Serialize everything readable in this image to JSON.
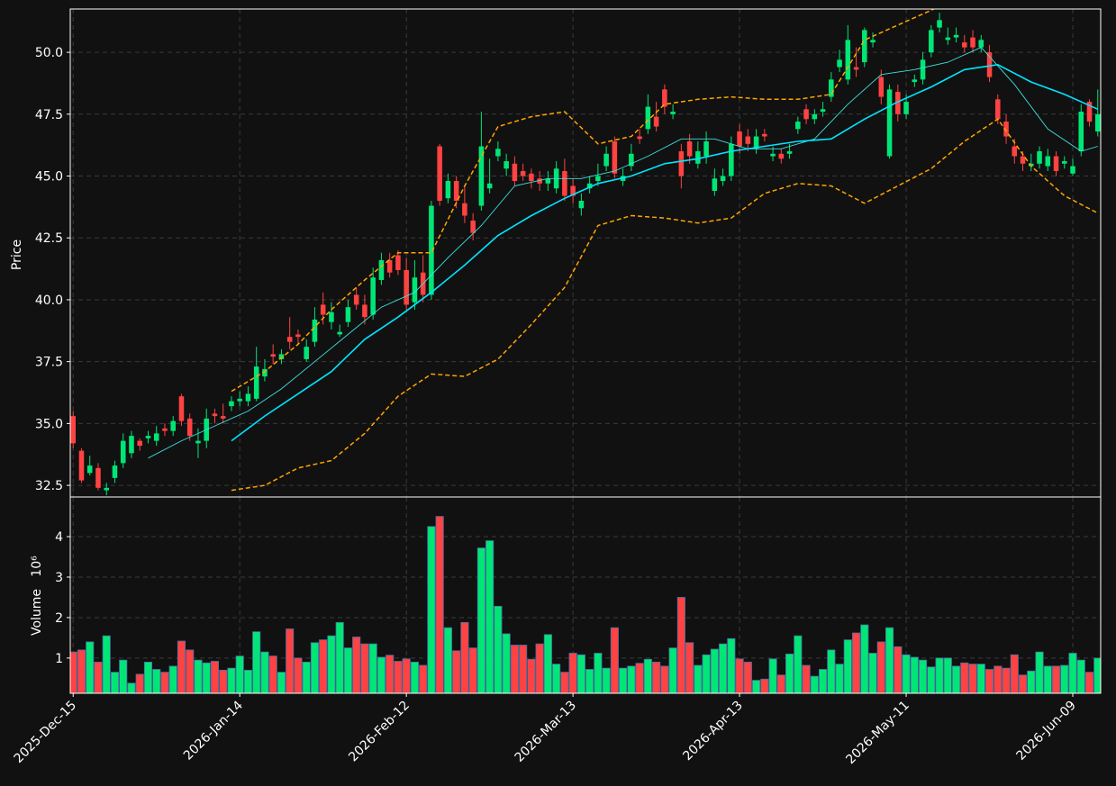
{
  "chart_data": {
    "type": "candlestick",
    "y_label": "Price",
    "x": [
      "2025-Dec-15",
      "2025-Dec-16",
      "2025-Dec-17",
      "2025-Dec-18",
      "2025-Dec-19",
      "2025-Dec-22",
      "2025-Dec-23",
      "2025-Dec-24",
      "2025-Dec-26",
      "2025-Dec-29",
      "2025-Dec-30",
      "2025-Dec-31",
      "2026-Jan-02",
      "2026-Jan-05",
      "2026-Jan-06",
      "2026-Jan-07",
      "2026-Jan-08",
      "2026-Jan-09",
      "2026-Jan-12",
      "2026-Jan-13",
      "2026-Jan-14",
      "2026-Jan-15",
      "2026-Jan-16",
      "2026-Jan-20",
      "2026-Jan-21",
      "2026-Jan-22",
      "2026-Jan-23",
      "2026-Jan-26",
      "2026-Jan-27",
      "2026-Jan-28",
      "2026-Jan-29",
      "2026-Jan-30",
      "2026-Feb-02",
      "2026-Feb-03",
      "2026-Feb-04",
      "2026-Feb-05",
      "2026-Feb-06",
      "2026-Feb-09",
      "2026-Feb-10",
      "2026-Feb-11",
      "2026-Feb-12",
      "2026-Feb-13",
      "2026-Feb-17",
      "2026-Feb-18",
      "2026-Feb-19",
      "2026-Feb-20",
      "2026-Feb-23",
      "2026-Feb-24",
      "2026-Feb-25",
      "2026-Feb-26",
      "2026-Feb-27",
      "2026-Mar-02",
      "2026-Mar-03",
      "2026-Mar-04",
      "2026-Mar-05",
      "2026-Mar-06",
      "2026-Mar-09",
      "2026-Mar-10",
      "2026-Mar-11",
      "2026-Mar-12",
      "2026-Mar-13",
      "2026-Mar-16",
      "2026-Mar-17",
      "2026-Mar-18",
      "2026-Mar-19",
      "2026-Mar-20",
      "2026-Mar-23",
      "2026-Mar-24",
      "2026-Mar-25",
      "2026-Mar-26",
      "2026-Mar-27",
      "2026-Mar-30",
      "2026-Mar-31",
      "2026-Apr-01",
      "2026-Apr-02",
      "2026-Apr-06",
      "2026-Apr-07",
      "2026-Apr-08",
      "2026-Apr-09",
      "2026-Apr-10",
      "2026-Apr-13",
      "2026-Apr-14",
      "2026-Apr-15",
      "2026-Apr-16",
      "2026-Apr-17",
      "2026-Apr-20",
      "2026-Apr-21",
      "2026-Apr-22",
      "2026-Apr-23",
      "2026-Apr-24",
      "2026-Apr-27",
      "2026-Apr-28",
      "2026-Apr-29",
      "2026-Apr-30",
      "2026-May-01",
      "2026-May-04",
      "2026-May-05",
      "2026-May-06",
      "2026-May-07",
      "2026-May-08",
      "2026-May-11",
      "2026-May-12",
      "2026-May-13",
      "2026-May-14",
      "2026-May-15",
      "2026-May-18",
      "2026-May-19",
      "2026-May-20",
      "2026-May-21",
      "2026-May-22",
      "2026-May-26",
      "2026-May-27",
      "2026-May-28",
      "2026-May-29",
      "2026-Jun-01",
      "2026-Jun-02",
      "2026-Jun-03",
      "2026-Jun-04",
      "2026-Jun-05",
      "2026-Jun-08",
      "2026-Jun-09",
      "2026-Jun-10",
      "2026-Jun-11",
      "2026-Jun-12"
    ],
    "open": [
      35.3,
      33.9,
      33.0,
      33.2,
      32.3,
      32.8,
      33.4,
      33.8,
      34.3,
      34.4,
      34.3,
      34.8,
      34.7,
      36.1,
      35.2,
      34.2,
      34.3,
      35.4,
      35.3,
      35.7,
      35.9,
      35.9,
      36.0,
      36.9,
      37.8,
      37.6,
      38.5,
      38.6,
      37.6,
      38.3,
      39.8,
      39.1,
      38.6,
      39.1,
      40.2,
      39.8,
      39.4,
      40.8,
      41.6,
      41.8,
      41.2,
      39.9,
      41.1,
      40.2,
      46.2,
      44.1,
      44.8,
      43.9,
      43.2,
      43.8,
      44.5,
      45.8,
      45.3,
      45.5,
      45.2,
      45.1,
      44.9,
      44.7,
      44.5,
      45.2,
      44.6,
      43.7,
      44.5,
      44.8,
      45.4,
      46.4,
      44.8,
      45.4,
      46.6,
      46.9,
      47.4,
      48.5,
      47.5,
      46.0,
      46.4,
      45.5,
      45.8,
      44.4,
      44.8,
      45.0,
      46.8,
      46.6,
      46.1,
      46.7,
      45.8,
      45.9,
      45.9,
      46.9,
      47.7,
      47.3,
      47.6,
      48.2,
      49.4,
      48.9,
      49.4,
      49.6,
      50.4,
      49.0,
      45.8,
      48.4,
      47.5,
      48.8,
      48.9,
      50.0,
      51.0,
      50.5,
      50.6,
      50.4,
      50.6,
      50.2,
      50.0,
      48.1,
      47.2,
      46.2,
      45.8,
      45.4,
      45.5,
      45.4,
      45.8,
      45.5,
      45.1,
      46.0,
      48.0,
      46.8
    ],
    "high": [
      35.5,
      34.0,
      33.7,
      33.4,
      32.6,
      33.5,
      34.6,
      34.7,
      34.4,
      34.7,
      34.9,
      35.0,
      35.3,
      36.2,
      35.4,
      34.8,
      35.6,
      35.6,
      35.8,
      36.1,
      36.3,
      36.5,
      38.1,
      37.6,
      38.2,
      38.0,
      39.3,
      38.8,
      38.4,
      39.7,
      40.3,
      39.9,
      39.0,
      40.0,
      40.5,
      40.2,
      41.3,
      41.9,
      41.9,
      42.0,
      41.7,
      41.6,
      41.8,
      44.0,
      46.3,
      45.1,
      45.0,
      44.6,
      43.5,
      47.6,
      45.7,
      46.4,
      45.9,
      45.8,
      45.5,
      45.3,
      45.2,
      45.2,
      45.6,
      45.7,
      44.9,
      44.3,
      45.0,
      45.5,
      46.2,
      46.6,
      45.3,
      46.3,
      46.9,
      48.3,
      48.0,
      48.7,
      47.9,
      46.3,
      46.7,
      46.4,
      46.8,
      45.3,
      45.3,
      46.6,
      47.1,
      46.9,
      46.9,
      46.9,
      46.2,
      46.1,
      46.3,
      47.4,
      47.9,
      47.7,
      48.0,
      49.2,
      50.1,
      51.1,
      50.2,
      51.0,
      50.8,
      49.3,
      48.7,
      48.7,
      48.3,
      49.1,
      50.0,
      51.1,
      51.6,
      51.0,
      51.0,
      50.7,
      50.9,
      50.7,
      50.3,
      48.3,
      47.5,
      46.5,
      46.0,
      45.9,
      46.2,
      46.1,
      46.0,
      45.8,
      45.7,
      47.9,
      48.1,
      48.5
    ],
    "low": [
      34.0,
      32.6,
      32.9,
      32.3,
      32.1,
      32.6,
      33.2,
      33.6,
      33.9,
      34.2,
      34.1,
      34.5,
      34.5,
      34.9,
      34.3,
      33.6,
      34.0,
      35.0,
      35.0,
      35.5,
      35.7,
      35.7,
      35.9,
      36.7,
      37.4,
      37.4,
      38.0,
      38.2,
      37.5,
      38.1,
      39.0,
      38.8,
      38.5,
      38.9,
      39.6,
      39.0,
      39.2,
      40.6,
      40.9,
      41.0,
      39.6,
      39.6,
      39.9,
      40.0,
      43.8,
      43.9,
      43.7,
      43.1,
      42.4,
      43.6,
      44.3,
      45.6,
      45.0,
      44.6,
      44.8,
      44.5,
      44.4,
      44.4,
      44.3,
      44.0,
      43.9,
      43.4,
      44.3,
      44.6,
      45.2,
      44.9,
      44.6,
      45.2,
      46.3,
      46.7,
      46.8,
      47.5,
      47.3,
      44.5,
      45.5,
      45.3,
      45.5,
      44.2,
      44.6,
      44.8,
      45.9,
      46.0,
      45.9,
      46.4,
      45.6,
      45.5,
      45.7,
      46.7,
      47.1,
      47.1,
      47.4,
      48.0,
      49.2,
      48.7,
      49.0,
      49.4,
      50.2,
      47.9,
      45.7,
      47.2,
      47.3,
      48.6,
      48.7,
      49.8,
      50.8,
      50.3,
      50.4,
      50.0,
      50.0,
      50.0,
      48.8,
      47.1,
      46.3,
      45.5,
      45.2,
      45.2,
      45.3,
      45.2,
      45.0,
      45.3,
      45.0,
      45.8,
      47.0,
      46.6
    ],
    "close": [
      34.2,
      32.7,
      33.3,
      32.4,
      32.4,
      33.3,
      34.3,
      34.5,
      34.1,
      34.5,
      34.6,
      34.7,
      35.1,
      35.1,
      34.5,
      34.3,
      35.2,
      35.3,
      35.2,
      35.9,
      36.0,
      36.2,
      37.3,
      37.2,
      37.7,
      37.8,
      38.3,
      38.5,
      38.1,
      39.2,
      39.4,
      39.5,
      38.7,
      39.7,
      39.8,
      39.3,
      40.9,
      41.6,
      41.1,
      41.2,
      39.8,
      40.9,
      40.2,
      43.8,
      44.0,
      44.8,
      44.0,
      43.4,
      42.7,
      46.2,
      44.7,
      46.1,
      45.6,
      44.8,
      45.0,
      44.8,
      44.7,
      44.9,
      45.3,
      44.2,
      44.2,
      44.0,
      44.7,
      45.0,
      45.9,
      45.1,
      45.0,
      45.9,
      46.5,
      47.8,
      47.0,
      47.8,
      47.6,
      45.0,
      45.8,
      46.0,
      46.4,
      44.9,
      45.0,
      46.3,
      46.2,
      46.3,
      46.6,
      46.6,
      45.9,
      45.7,
      46.0,
      47.2,
      47.3,
      47.5,
      47.7,
      48.9,
      49.7,
      50.5,
      49.3,
      50.9,
      50.5,
      48.2,
      48.5,
      47.5,
      48.0,
      48.9,
      49.7,
      50.9,
      51.3,
      50.6,
      50.7,
      50.2,
      50.2,
      50.5,
      49.0,
      47.3,
      46.6,
      45.8,
      45.5,
      45.5,
      46.0,
      45.8,
      45.2,
      45.6,
      45.4,
      47.6,
      47.2,
      47.5
    ],
    "up_color": "#00e676",
    "down_color": "#ff4242",
    "ylim": [
      32.03,
      51.75
    ],
    "yticks": [
      32.5,
      {
        "value": 35,
        "label": "35.0"
      },
      37.5,
      {
        "value": 40,
        "label": "40.0"
      },
      42.5,
      {
        "value": 45,
        "label": "45.0"
      },
      47.5,
      {
        "value": 50,
        "label": "50.0"
      }
    ],
    "xticks": [
      "2025-Dec-15",
      "2026-Jan-14",
      "2026-Feb-12",
      "2026-Mar-13",
      "2026-Apr-13",
      "2026-May-11",
      "2026-Jun-09"
    ],
    "grid": true,
    "overlays": [
      {
        "color": "#3fe0e0",
        "width": 0.9,
        "dash": false,
        "x": [
          "2025-Dec-29",
          "2026-Jan-05",
          "2026-Jan-09",
          "2026-Jan-15",
          "2026-Jan-22",
          "2026-Jan-28",
          "2026-Feb-03",
          "2026-Feb-09",
          "2026-Feb-13",
          "2026-Feb-20",
          "2026-Feb-26",
          "2026-Mar-04",
          "2026-Mar-10",
          "2026-Mar-16",
          "2026-Mar-20",
          "2026-Mar-26",
          "2026-Apr-01",
          "2026-Apr-08",
          "2026-Apr-14",
          "2026-Apr-20",
          "2026-Apr-24",
          "2026-Apr-30",
          "2026-May-06",
          "2026-May-12",
          "2026-May-18",
          "2026-May-22",
          "2026-May-29",
          "2026-Jun-04",
          "2026-Jun-10",
          "2026-Jun-12"
        ],
        "values": [
          33.6,
          34.3,
          34.9,
          35.5,
          36.4,
          37.5,
          38.6,
          39.7,
          40.3,
          41.7,
          43.0,
          44.6,
          44.9,
          44.9,
          45.2,
          45.8,
          46.5,
          46.5,
          46.1,
          46.1,
          46.5,
          47.9,
          49.1,
          49.3,
          49.6,
          50.2,
          48.7,
          46.9,
          46.0,
          46.2
        ]
      },
      {
        "color": "#00e5ff",
        "width": 1.6,
        "dash": false,
        "x": [
          "2026-Jan-13",
          "2026-Jan-20",
          "2026-Jan-26",
          "2026-Jan-30",
          "2026-Feb-05",
          "2026-Feb-11",
          "2026-Feb-18",
          "2026-Feb-24",
          "2026-Mar-02",
          "2026-Mar-06",
          "2026-Mar-12",
          "2026-Mar-18",
          "2026-Mar-24",
          "2026-Mar-30",
          "2026-Apr-06",
          "2026-Apr-10",
          "2026-Apr-16",
          "2026-Apr-22",
          "2026-Apr-28",
          "2026-May-04",
          "2026-May-08",
          "2026-May-14",
          "2026-May-20",
          "2026-May-27",
          "2026-Jun-02",
          "2026-Jun-08",
          "2026-Jun-12"
        ],
        "values": [
          34.3,
          35.3,
          36.2,
          37.1,
          38.4,
          39.3,
          40.3,
          41.4,
          42.6,
          43.4,
          44.1,
          44.7,
          45.0,
          45.5,
          45.7,
          46.0,
          46.2,
          46.4,
          46.5,
          47.3,
          48.0,
          48.6,
          49.3,
          49.5,
          48.8,
          48.3,
          47.7
        ]
      },
      {
        "color": "#ffa500",
        "width": 1.5,
        "dash": true,
        "x": [
          "2026-Jan-13",
          "2026-Jan-20",
          "2026-Jan-26",
          "2026-Jan-30",
          "2026-Feb-05",
          "2026-Feb-11",
          "2026-Feb-18",
          "2026-Feb-24",
          "2026-Mar-02",
          "2026-Mar-06",
          "2026-Mar-12",
          "2026-Mar-18",
          "2026-Mar-24",
          "2026-Mar-30",
          "2026-Apr-06",
          "2026-Apr-10",
          "2026-Apr-16",
          "2026-Apr-22",
          "2026-Apr-28",
          "2026-May-04",
          "2026-May-08",
          "2026-May-14",
          "2026-May-20"
        ],
        "values": [
          36.3,
          37.1,
          38.2,
          39.6,
          40.8,
          41.9,
          41.9,
          44.6,
          47.0,
          47.4,
          47.6,
          46.3,
          46.6,
          47.9,
          48.1,
          48.2,
          48.1,
          48.1,
          48.3,
          50.5,
          51.1,
          51.7,
          52.4
        ]
      },
      {
        "color": "#ffa500",
        "width": 1.5,
        "dash": true,
        "x": [
          "2026-Jan-13",
          "2026-Jan-20",
          "2026-Jan-26",
          "2026-Jan-30",
          "2026-Feb-05",
          "2026-Feb-11",
          "2026-Feb-18",
          "2026-Feb-24",
          "2026-Mar-02",
          "2026-Mar-06",
          "2026-Mar-12",
          "2026-Mar-18",
          "2026-Mar-24",
          "2026-Mar-30",
          "2026-Apr-06",
          "2026-Apr-10",
          "2026-Apr-16",
          "2026-Apr-22",
          "2026-Apr-28",
          "2026-May-04",
          "2026-May-08",
          "2026-May-14",
          "2026-May-20",
          "2026-May-27",
          "2026-Jun-02",
          "2026-Jun-08",
          "2026-Jun-12"
        ],
        "values": [
          32.3,
          32.5,
          33.2,
          33.5,
          34.6,
          36.1,
          37.0,
          36.9,
          37.6,
          39.0,
          40.5,
          43.0,
          43.4,
          43.3,
          43.1,
          43.3,
          44.3,
          44.7,
          44.6,
          43.9,
          44.6,
          45.3,
          46.4,
          47.3,
          45.4,
          44.2,
          43.5
        ]
      }
    ],
    "volume": {
      "y_label": "Volume",
      "y_offset": "10⁶",
      "values": [
        1.15,
        1.2,
        1.4,
        0.9,
        1.55,
        0.65,
        0.95,
        0.38,
        0.6,
        0.9,
        0.72,
        0.65,
        0.8,
        1.42,
        1.2,
        0.95,
        0.88,
        0.92,
        0.7,
        0.75,
        1.05,
        0.7,
        1.65,
        1.15,
        1.05,
        0.65,
        1.72,
        1.0,
        0.9,
        1.38,
        1.45,
        1.55,
        1.88,
        1.25,
        1.52,
        1.35,
        1.35,
        1.02,
        1.07,
        0.92,
        0.98,
        0.9,
        0.82,
        4.25,
        4.5,
        1.75,
        1.18,
        1.88,
        1.25,
        3.72,
        3.9,
        2.28,
        1.6,
        1.32,
        1.32,
        0.97,
        1.35,
        1.58,
        0.85,
        0.65,
        1.12,
        1.08,
        0.72,
        1.12,
        0.75,
        1.75,
        0.75,
        0.8,
        0.87,
        0.97,
        0.9,
        0.8,
        1.25,
        2.5,
        1.38,
        0.82,
        1.08,
        1.22,
        1.35,
        1.48,
        0.98,
        0.9,
        0.45,
        0.48,
        0.98,
        0.58,
        1.1,
        1.55,
        0.82,
        0.55,
        0.72,
        1.2,
        0.85,
        1.45,
        1.62,
        1.82,
        1.12,
        1.4,
        1.75,
        1.28,
        1.08,
        1.02,
        0.95,
        0.78,
        1.0,
        1.0,
        0.8,
        0.88,
        0.85,
        0.85,
        0.72,
        0.8,
        0.75,
        1.08,
        0.58,
        0.68,
        1.15,
        0.8,
        0.8,
        0.82,
        1.12,
        0.95,
        0.65,
        1.0
      ],
      "edge_color": "#4a6fa5",
      "ylim": [
        0.13,
        4.98
      ],
      "yticks": [
        1,
        2,
        3,
        4
      ]
    }
  }
}
